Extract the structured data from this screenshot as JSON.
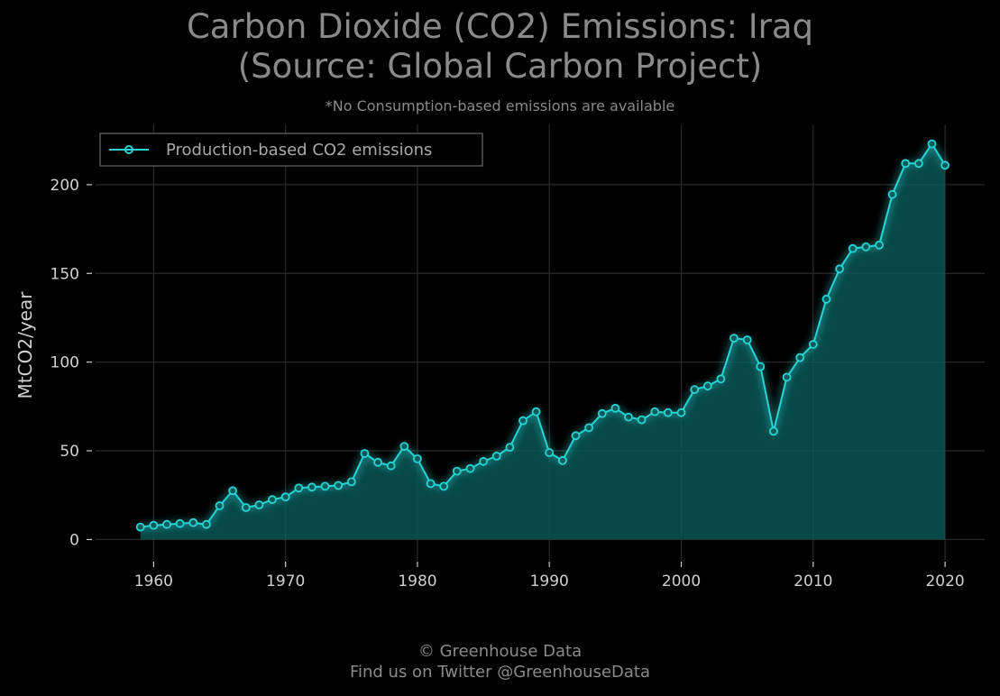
{
  "title_line1": "Carbon Dioxide (CO2) Emissions: Iraq",
  "title_line2": "(Source: Global Carbon Project)",
  "subtitle": "*No Consumption-based emissions are available",
  "footer_line1": "© Greenhouse Data",
  "footer_line2": "Find us on Twitter @GreenhouseData",
  "colors": {
    "line": "#27d3d3",
    "fill": "#0a5a5a",
    "grid": "#2a2a2a",
    "background": "#000000"
  },
  "chart_data": {
    "type": "area",
    "title": "Carbon Dioxide (CO2) Emissions: Iraq (Source: Global Carbon Project)",
    "ylabel": "MtCO2/year",
    "xlabel": "",
    "xlim": [
      1955.6,
      2023
    ],
    "ylim": [
      -12,
      234
    ],
    "xticks": [
      1960,
      1970,
      1980,
      1990,
      2000,
      2010,
      2020
    ],
    "yticks": [
      0,
      50,
      100,
      150,
      200
    ],
    "grid": true,
    "legend_position": "top-left",
    "series": [
      {
        "name": "Production-based CO2 emissions",
        "x": [
          1959,
          1960,
          1961,
          1962,
          1963,
          1964,
          1965,
          1966,
          1967,
          1968,
          1969,
          1970,
          1971,
          1972,
          1973,
          1974,
          1975,
          1976,
          1977,
          1978,
          1979,
          1980,
          1981,
          1982,
          1983,
          1984,
          1985,
          1986,
          1987,
          1988,
          1989,
          1990,
          1991,
          1992,
          1993,
          1994,
          1995,
          1996,
          1997,
          1998,
          1999,
          2000,
          2001,
          2002,
          2003,
          2004,
          2005,
          2006,
          2007,
          2008,
          2009,
          2010,
          2011,
          2012,
          2013,
          2014,
          2015,
          2016,
          2017,
          2018,
          2019,
          2020
        ],
        "y": [
          7,
          8,
          8.5,
          9,
          9.5,
          8.5,
          19,
          27.5,
          18,
          19.5,
          22.5,
          24,
          29,
          29.5,
          30,
          30.5,
          32.5,
          48.5,
          43.5,
          41.5,
          52.5,
          45.5,
          31.5,
          30,
          38.5,
          40,
          44,
          47,
          52,
          67,
          72,
          49,
          44.5,
          58.5,
          63,
          71,
          74,
          69,
          67.5,
          72,
          71.5,
          71.5,
          84.5,
          86.5,
          90.5,
          113.5,
          112.5,
          97.5,
          61,
          91.5,
          102.5,
          110,
          135.5,
          152.5,
          164,
          165,
          166,
          194.5,
          212,
          212,
          223,
          211
        ]
      }
    ]
  }
}
